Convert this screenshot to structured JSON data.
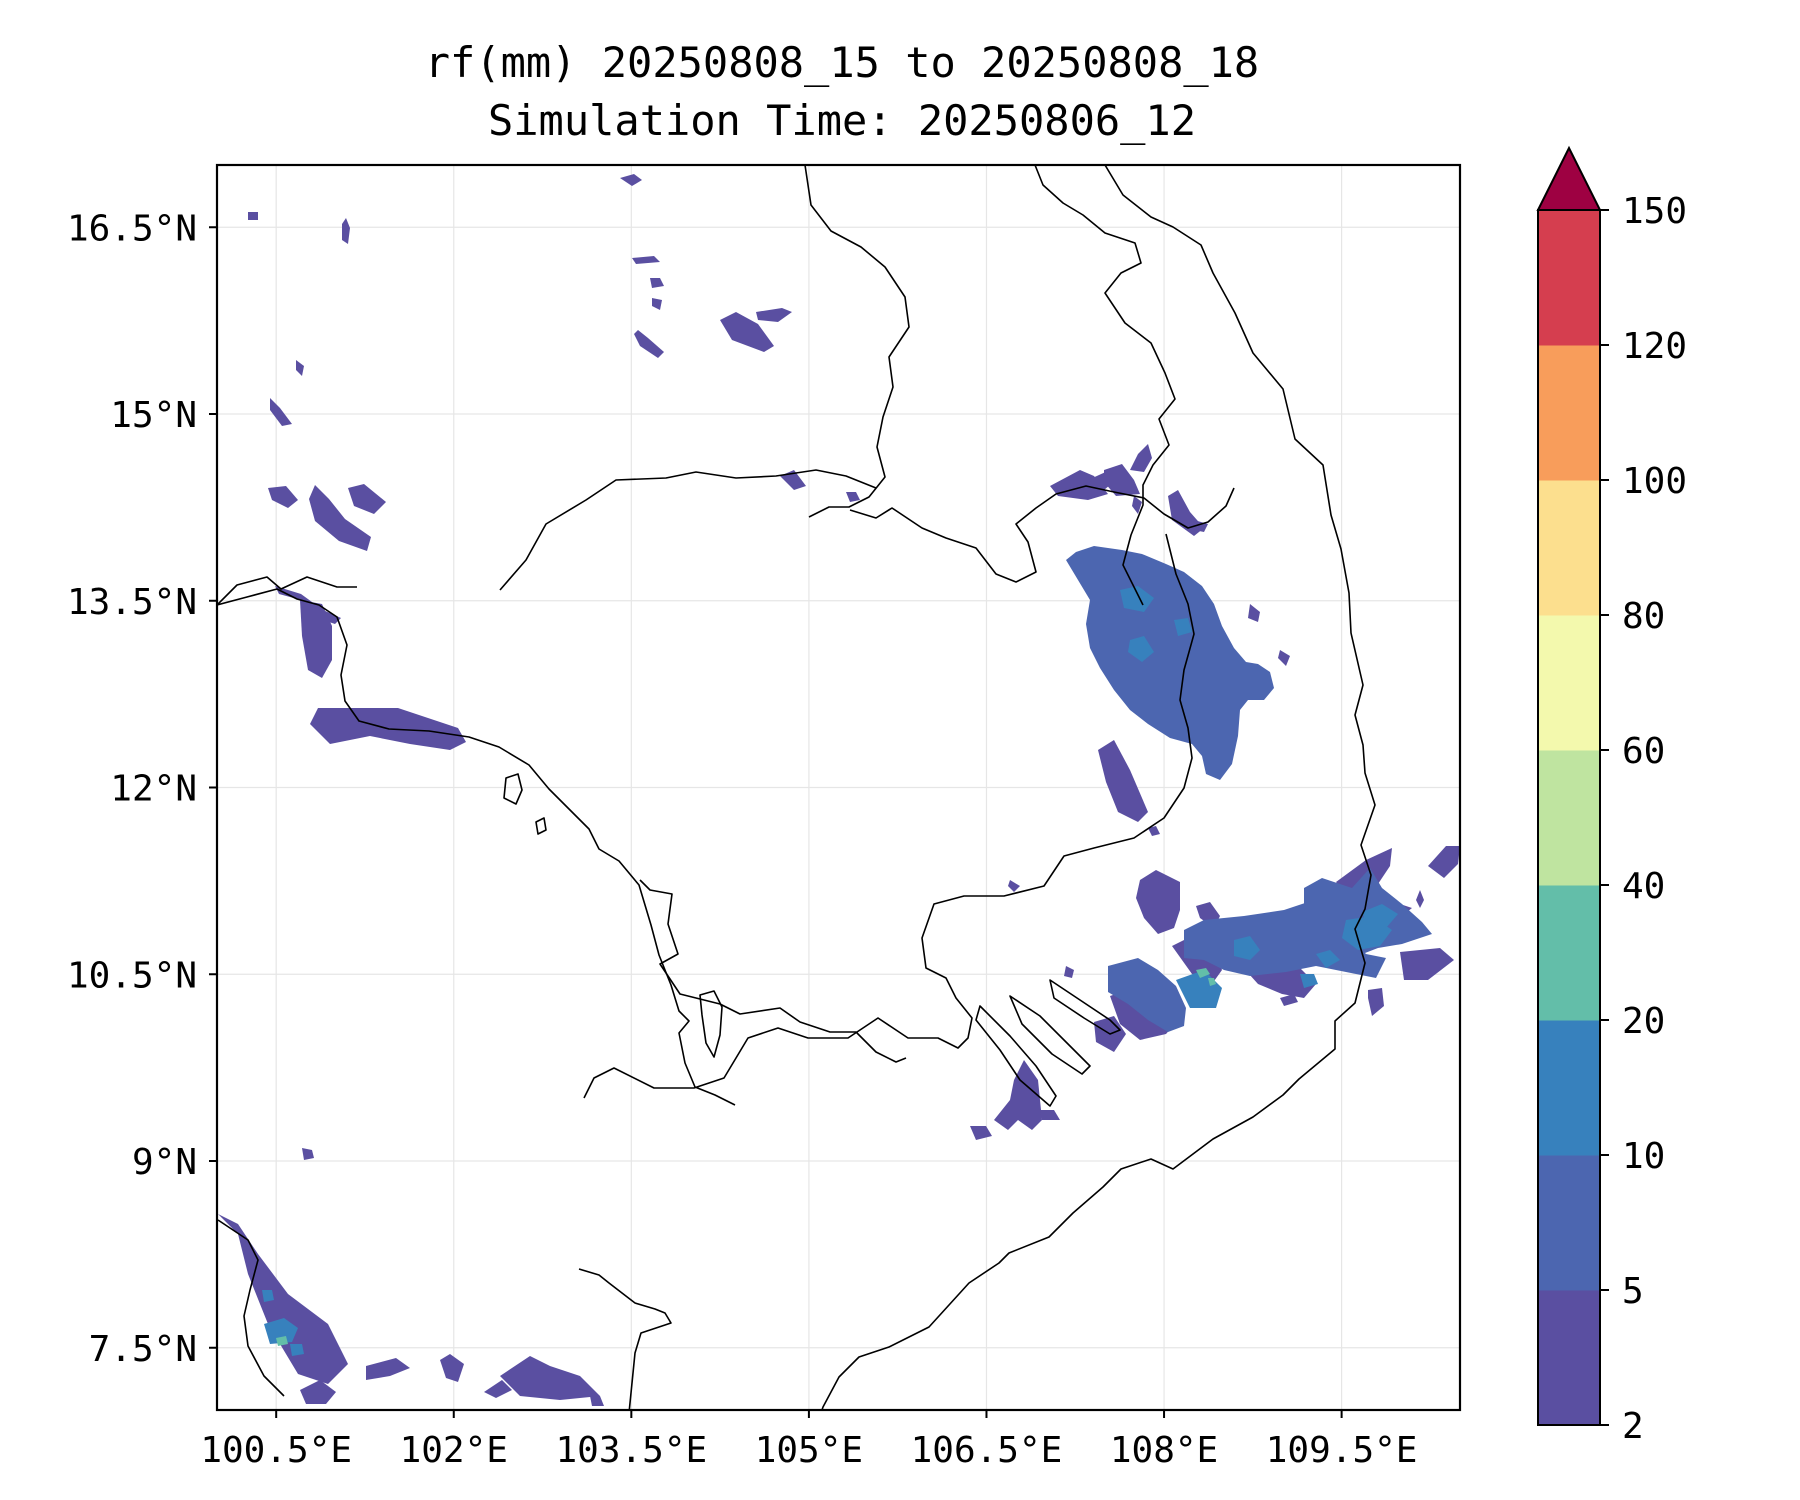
{
  "title": {
    "line1": "rf(mm) 20250808_15 to 20250808_18",
    "line2": "Simulation Time: 20250806_12"
  },
  "map": {
    "lon_range": [
      100.0,
      110.5
    ],
    "lat_range": [
      7.0,
      17.0
    ],
    "x_ticks": [
      {
        "value": 100.5,
        "label": "100.5°E"
      },
      {
        "value": 102.0,
        "label": "102°E"
      },
      {
        "value": 103.5,
        "label": "103.5°E"
      },
      {
        "value": 105.0,
        "label": "105°E"
      },
      {
        "value": 106.5,
        "label": "106.5°E"
      },
      {
        "value": 108.0,
        "label": "108°E"
      },
      {
        "value": 109.5,
        "label": "109.5°E"
      }
    ],
    "y_ticks": [
      {
        "value": 16.5,
        "label": "16.5°N"
      },
      {
        "value": 15.0,
        "label": "15°N"
      },
      {
        "value": 13.5,
        "label": "13.5°N"
      },
      {
        "value": 12.0,
        "label": "12°N"
      },
      {
        "value": 10.5,
        "label": "10.5°N"
      },
      {
        "value": 9.0,
        "label": "9°N"
      },
      {
        "value": 7.5,
        "label": "7.5°N"
      }
    ],
    "grid": true
  },
  "colorbar": {
    "levels": [
      "2",
      "5",
      "10",
      "20",
      "40",
      "60",
      "80",
      "100",
      "120",
      "150"
    ],
    "colors": [
      "#5a4fa1",
      "#4c66b0",
      "#3781bd",
      "#63bea9",
      "#bfe4a0",
      "#f3f9ad",
      "#fcdf8e",
      "#f89d5b",
      "#d53e4f"
    ],
    "extend_color": "#9e0142",
    "extend": "max"
  },
  "rain_colors": {
    "light": "#5a4fa1",
    "moderate": "#4c66b0",
    "heavy": "#3781bd",
    "peak": "#63bea9"
  }
}
